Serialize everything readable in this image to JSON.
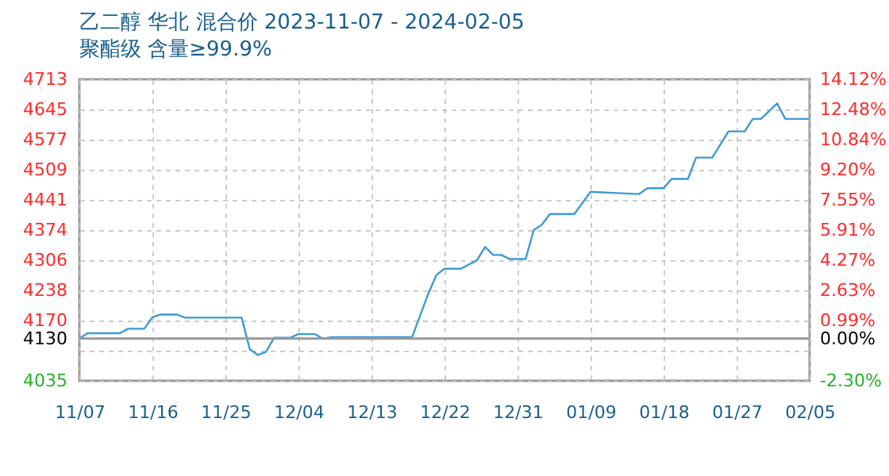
{
  "chart_data": {
    "type": "line",
    "title": "乙二醇 华北 混合价 2023-11-07 - 2024-02-05",
    "subtitle": "聚酯级 含量≥99.9%",
    "x": [
      "2023-11-07",
      "2023-11-08",
      "2023-11-12",
      "2023-11-13",
      "2023-11-15",
      "2023-11-16",
      "2023-11-17",
      "2023-11-19",
      "2023-11-20",
      "2023-11-27",
      "2023-11-28",
      "2023-11-29",
      "2023-11-30",
      "2023-12-01",
      "2023-12-03",
      "2023-12-04",
      "2023-12-06",
      "2023-12-07",
      "2023-12-08",
      "2023-12-18",
      "2023-12-20",
      "2023-12-21",
      "2023-12-22",
      "2023-12-24",
      "2023-12-26",
      "2023-12-27",
      "2023-12-28",
      "2023-12-29",
      "2023-12-30",
      "2024-01-01",
      "2024-01-02",
      "2024-01-03",
      "2024-01-04",
      "2024-01-07",
      "2024-01-09",
      "2024-01-15",
      "2024-01-16",
      "2024-01-18",
      "2024-01-19",
      "2024-01-21",
      "2024-01-22",
      "2024-01-24",
      "2024-01-26",
      "2024-01-28",
      "2024-01-29",
      "2024-01-30",
      "2024-02-01",
      "2024-02-02",
      "2024-02-05"
    ],
    "series": [
      {
        "color": "#3d9ad8",
        "values": [
          4130,
          4142,
          4142,
          4152,
          4152,
          4178,
          4184,
          4184,
          4177,
          4177,
          4106,
          4093,
          4100,
          4132,
          4132,
          4140,
          4140,
          4130,
          4133,
          4133,
          4231,
          4273,
          4287,
          4287,
          4306,
          4336,
          4318,
          4318,
          4309,
          4309,
          4374,
          4386,
          4410,
          4410,
          4460,
          4455,
          4468,
          4468,
          4489,
          4489,
          4537,
          4537,
          4596,
          4596,
          4624,
          4624,
          4659,
          4624,
          4624
        ]
      }
    ],
    "xlim": [
      "2023-11-07",
      "2024-02-05"
    ],
    "xticks": [
      {
        "value": "2023-11-07",
        "label": "11/07"
      },
      {
        "value": "2023-11-16",
        "label": "11/16"
      },
      {
        "value": "2023-11-25",
        "label": "11/25"
      },
      {
        "value": "2023-12-04",
        "label": "12/04"
      },
      {
        "value": "2023-12-13",
        "label": "12/13"
      },
      {
        "value": "2023-12-22",
        "label": "12/22"
      },
      {
        "value": "2023-12-31",
        "label": "12/31"
      },
      {
        "value": "2024-01-09",
        "label": "01/09"
      },
      {
        "value": "2024-01-18",
        "label": "01/18"
      },
      {
        "value": "2024-01-27",
        "label": "01/27"
      },
      {
        "value": "2024-02-05",
        "label": "02/05"
      }
    ],
    "ylim": [
      4035,
      4713
    ],
    "yticks": [
      4035,
      {
        "value": 4102,
        "label": null
      },
      4130,
      4170,
      4238,
      4306,
      4374,
      4441,
      4509,
      4577,
      4645,
      4713
    ],
    "y2lim": [
      -2.3,
      14.12
    ],
    "y2ticks": [
      {
        "value": -2.3,
        "label": "-2.30%"
      },
      {
        "value": 0,
        "label": "0.00%"
      },
      {
        "value": 0.99,
        "label": "0.99%"
      },
      {
        "value": 2.63,
        "label": "2.63%"
      },
      {
        "value": 4.27,
        "label": "4.27%"
      },
      {
        "value": 5.91,
        "label": "5.91%"
      },
      {
        "value": 7.55,
        "label": "7.55%"
      },
      {
        "value": 9.2,
        "label": "9.20%"
      },
      {
        "value": 10.84,
        "label": "10.84%"
      },
      {
        "value": 12.48,
        "label": "12.48%"
      },
      {
        "value": 14.12,
        "label": "14.12%"
      }
    ],
    "ref_lines": [
      {
        "axis": "y",
        "value": 4130,
        "color": "#999999"
      }
    ],
    "grid": true,
    "line_style": "solid"
  }
}
